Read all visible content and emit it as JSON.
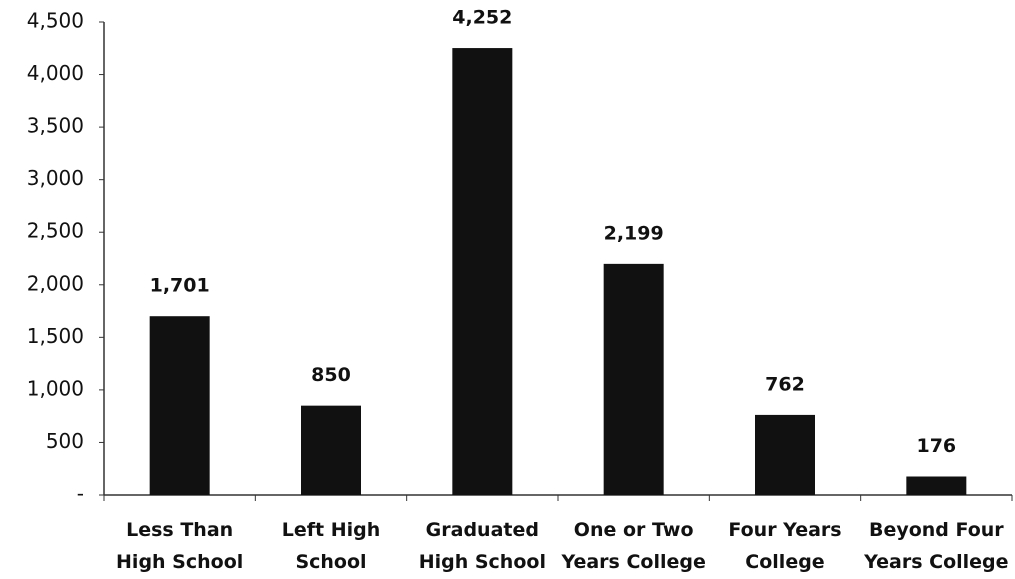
{
  "chart_data": {
    "type": "bar",
    "categories": [
      "Less Than High School",
      "Left High School",
      "Graduated High School",
      "One or Two Years College",
      "Four Years College",
      "Beyond Four Years College"
    ],
    "values": [
      1701,
      850,
      4252,
      2199,
      762,
      176
    ],
    "value_labels": [
      "1,701",
      "850",
      "4,252",
      "2,199",
      "762",
      "176"
    ],
    "color": "#111111",
    "ylim": [
      0,
      4500
    ],
    "yticks": [
      {
        "value": 0,
        "label": "-"
      },
      500,
      {
        "value": 1000,
        "label": "1,000"
      },
      {
        "value": 1500,
        "label": "1,500"
      },
      {
        "value": 2000,
        "label": "2,000"
      },
      {
        "value": 2500,
        "label": "2,500"
      },
      {
        "value": 3000,
        "label": "3,000"
      },
      {
        "value": 3500,
        "label": "3,500"
      },
      {
        "value": 4000,
        "label": "4,000"
      },
      {
        "value": 4500,
        "label": "4,500"
      }
    ],
    "grid": false
  }
}
